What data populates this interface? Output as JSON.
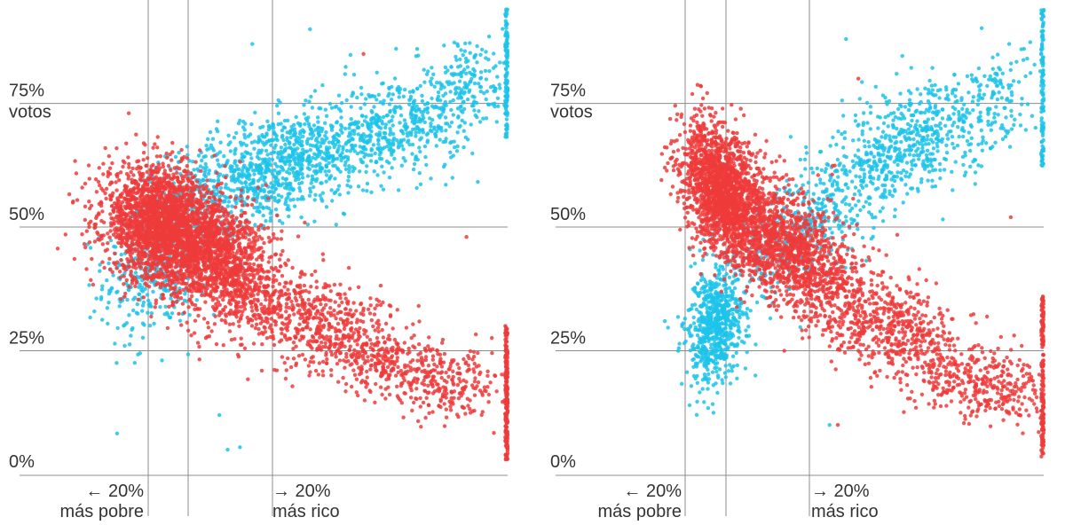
{
  "chart_data": [
    {
      "type": "scatter",
      "title": "",
      "xlabel": "",
      "ylabel": "votos",
      "ylim": [
        0,
        95
      ],
      "yticks": [
        0,
        25,
        50,
        75
      ],
      "ytick_labels": [
        "0%",
        "25%",
        "50%",
        "75%"
      ],
      "ylabel_text": "votos",
      "xtick_labels": [
        {
          "line1": "← 20%",
          "line2": "más pobre"
        },
        {
          "line1": "→ 20%",
          "line2": "más rico"
        }
      ],
      "grid": true,
      "legend": "none",
      "colors": {
        "blue": "#1cc3ea",
        "red": "#ee3b3b",
        "grid": "#8c8c8c"
      },
      "series": [
        {
          "color_key": "blue",
          "clusters": [
            {
              "cx": 0.16,
              "cy": 44,
              "sx": 0.07,
              "sy": 8,
              "n": 520,
              "corr": 0.3
            },
            {
              "cx": 0.42,
              "cy": 62,
              "sx": 0.12,
              "sy": 6,
              "n": 900,
              "corr": 0.5
            },
            {
              "cx": 0.72,
              "cy": 70,
              "sx": 0.1,
              "sy": 6,
              "n": 520,
              "corr": 0.4
            },
            {
              "cx": 0.91,
              "cy": 79,
              "sx": 0.05,
              "sy": 5,
              "n": 150,
              "corr": 0.2
            }
          ],
          "edge": {
            "x": 1.0,
            "ymin": 68,
            "ymax": 94,
            "n": 110
          },
          "outliers": [
            [
              0.07,
              26
            ],
            [
              0.3,
              12
            ],
            [
              0.32,
              5
            ],
            [
              0.35,
              5.5
            ],
            [
              0.52,
              90
            ],
            [
              0.38,
              87
            ]
          ]
        },
        {
          "color_key": "red",
          "clusters": [
            {
              "cx": 0.16,
              "cy": 50,
              "sx": 0.07,
              "sy": 6,
              "n": 2200,
              "corr": -0.2
            },
            {
              "cx": 0.3,
              "cy": 44,
              "sx": 0.07,
              "sy": 7,
              "n": 1300,
              "corr": -0.4
            },
            {
              "cx": 0.55,
              "cy": 30,
              "sx": 0.1,
              "sy": 6,
              "n": 600,
              "corr": -0.5
            },
            {
              "cx": 0.8,
              "cy": 20,
              "sx": 0.1,
              "sy": 4,
              "n": 420,
              "corr": -0.4
            }
          ],
          "edge": {
            "x": 1.0,
            "ymin": 3,
            "ymax": 30,
            "n": 190
          },
          "outliers": [
            [
              0.08,
              73
            ],
            [
              0.9,
              48
            ],
            [
              0.65,
              85
            ],
            [
              0.93,
              22
            ]
          ]
        }
      ]
    },
    {
      "type": "scatter",
      "title": "",
      "xlabel": "",
      "ylabel": "votos",
      "ylim": [
        0,
        95
      ],
      "yticks": [
        0,
        25,
        50,
        75
      ],
      "ytick_labels": [
        "0%",
        "25%",
        "50%",
        "75%"
      ],
      "ylabel_text": "votos",
      "xtick_labels": [
        {
          "line1": "← 20%",
          "line2": "más pobre"
        },
        {
          "line1": "→ 20%",
          "line2": "más rico"
        }
      ],
      "grid": true,
      "legend": "none",
      "colors": {
        "blue": "#1cc3ea",
        "red": "#ee3b3b",
        "grid": "#8c8c8c"
      },
      "series": [
        {
          "color_key": "blue",
          "clusters": [
            {
              "cx": 0.2,
              "cy": 30,
              "sx": 0.035,
              "sy": 6,
              "n": 650,
              "corr": 0.2
            },
            {
              "cx": 0.42,
              "cy": 50,
              "sx": 0.1,
              "sy": 8,
              "n": 450,
              "corr": 0.6
            },
            {
              "cx": 0.68,
              "cy": 67,
              "sx": 0.1,
              "sy": 6,
              "n": 550,
              "corr": 0.4
            },
            {
              "cx": 0.9,
              "cy": 76,
              "sx": 0.05,
              "sy": 5,
              "n": 120,
              "corr": 0.2
            }
          ],
          "edge": {
            "x": 1.0,
            "ymin": 62,
            "ymax": 94,
            "n": 110
          },
          "outliers": [
            [
              0.08,
              31
            ],
            [
              0.14,
              14
            ],
            [
              0.3,
              20
            ],
            [
              0.52,
              88
            ],
            [
              0.48,
              10
            ]
          ]
        },
        {
          "color_key": "red",
          "clusters": [
            {
              "cx": 0.22,
              "cy": 57,
              "sx": 0.05,
              "sy": 7,
              "n": 1800,
              "corr": -0.4
            },
            {
              "cx": 0.38,
              "cy": 46,
              "sx": 0.08,
              "sy": 7,
              "n": 1300,
              "corr": -0.5
            },
            {
              "cx": 0.62,
              "cy": 30,
              "sx": 0.1,
              "sy": 6,
              "n": 600,
              "corr": -0.5
            },
            {
              "cx": 0.85,
              "cy": 18,
              "sx": 0.08,
              "sy": 4,
              "n": 330,
              "corr": -0.3
            }
          ],
          "edge": {
            "x": 1.0,
            "ymin": 3,
            "ymax": 36,
            "n": 170
          },
          "outliers": [
            [
              0.08,
              62
            ],
            [
              0.92,
              52
            ],
            [
              0.55,
              80
            ],
            [
              0.5,
              10
            ]
          ]
        }
      ]
    }
  ]
}
